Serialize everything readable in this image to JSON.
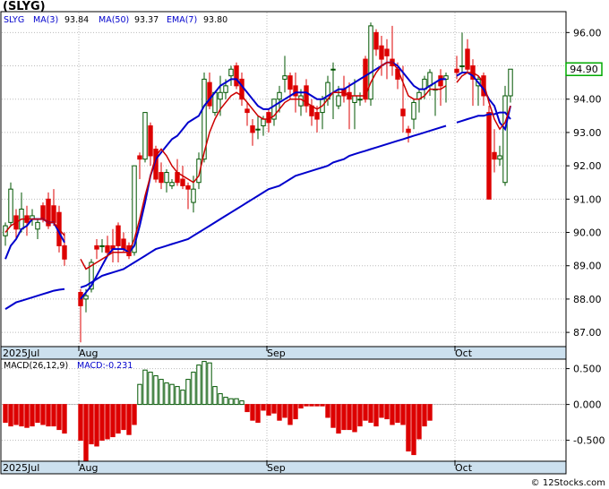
{
  "chart_data": [
    {
      "type": "candlestick",
      "title": "(SLYG)",
      "legend": {
        "symbol": "SLYG",
        "items": [
          {
            "label": "MA(3)",
            "value": "93.84",
            "color": "#0000cc"
          },
          {
            "label": "MA(50)",
            "value": "93.37",
            "color": "#0000cc"
          },
          {
            "label": "EMA(7)",
            "value": "93.80",
            "color": "#0000cc"
          }
        ]
      },
      "last_price_label": "94.90",
      "x_labels": [
        {
          "text": "2025Jul",
          "index": 0
        },
        {
          "text": "Aug",
          "index": 14
        },
        {
          "text": "Sep",
          "index": 49
        },
        {
          "text": "Oct",
          "index": 84
        }
      ],
      "ylim": [
        86.6,
        96.6
      ],
      "yticks": [
        "87.00",
        "88.00",
        "89.00",
        "90.00",
        "91.00",
        "92.00",
        "93.00",
        "94.00",
        "95.00",
        "96.00"
      ],
      "ohlc": [
        [
          89.9,
          90.3,
          89.6,
          90.2
        ],
        [
          90.3,
          91.5,
          90.2,
          91.3
        ],
        [
          90.5,
          90.7,
          89.8,
          90.1
        ],
        [
          90.1,
          91.2,
          90.0,
          90.7
        ],
        [
          90.5,
          90.8,
          89.9,
          90.3
        ],
        [
          90.4,
          90.7,
          90.2,
          90.5
        ],
        [
          90.1,
          90.4,
          89.8,
          90.3
        ],
        [
          90.8,
          90.9,
          90.3,
          90.4
        ],
        [
          91.0,
          91.2,
          90.1,
          90.2
        ],
        [
          90.8,
          91.3,
          90.2,
          90.3
        ],
        [
          90.6,
          90.8,
          89.4,
          89.6
        ],
        [
          89.6,
          90.0,
          89.0,
          89.2
        ],
        [
          null,
          null,
          null,
          null
        ],
        [
          null,
          null,
          null,
          null
        ],
        [
          88.2,
          88.3,
          86.7,
          87.8
        ],
        [
          88.0,
          88.3,
          87.6,
          88.1
        ],
        [
          88.3,
          89.2,
          88.2,
          89.1
        ],
        [
          89.6,
          89.8,
          89.2,
          89.5
        ],
        [
          89.6,
          89.8,
          89.4,
          89.6
        ],
        [
          89.6,
          89.9,
          89.3,
          89.4
        ],
        [
          89.6,
          90.1,
          89.1,
          89.5
        ],
        [
          90.2,
          90.3,
          89.1,
          89.6
        ],
        [
          89.8,
          90.0,
          89.4,
          89.5
        ],
        [
          89.6,
          89.7,
          89.2,
          89.3
        ],
        [
          89.4,
          92.0,
          89.3,
          92.0
        ],
        [
          92.3,
          92.4,
          91.6,
          92.2
        ],
        [
          92.2,
          93.6,
          92.1,
          93.6
        ],
        [
          93.2,
          93.3,
          92.0,
          92.3
        ],
        [
          92.5,
          92.6,
          91.5,
          91.6
        ],
        [
          91.8,
          92.1,
          91.3,
          91.5
        ],
        [
          91.5,
          91.9,
          91.2,
          91.8
        ],
        [
          91.4,
          91.6,
          91.3,
          91.5
        ],
        [
          91.8,
          92.2,
          91.4,
          91.5
        ],
        [
          91.6,
          92.0,
          91.3,
          91.4
        ],
        [
          91.4,
          91.5,
          90.7,
          91.3
        ],
        [
          90.9,
          91.7,
          90.6,
          91.3
        ],
        [
          91.5,
          92.4,
          91.3,
          92.2
        ],
        [
          92.2,
          94.8,
          92.1,
          94.6
        ],
        [
          94.5,
          94.8,
          93.7,
          93.8
        ],
        [
          93.6,
          94.2,
          93.5,
          94.2
        ],
        [
          94.0,
          94.7,
          93.5,
          94.2
        ],
        [
          94.2,
          94.6,
          94.0,
          94.4
        ],
        [
          94.7,
          95.0,
          94.4,
          94.9
        ],
        [
          95.0,
          95.1,
          94.3,
          94.4
        ],
        [
          94.6,
          94.8,
          93.8,
          94.0
        ],
        [
          93.7,
          93.9,
          93.2,
          93.6
        ],
        [
          93.2,
          93.4,
          92.6,
          93.0
        ],
        [
          93.1,
          93.5,
          92.8,
          93.1
        ],
        [
          93.2,
          93.5,
          92.9,
          93.4
        ],
        [
          93.6,
          93.7,
          93.0,
          93.3
        ],
        [
          93.4,
          94.0,
          93.2,
          94.0
        ],
        [
          94.0,
          94.4,
          93.6,
          94.2
        ],
        [
          94.6,
          95.3,
          94.2,
          94.7
        ],
        [
          94.7,
          94.8,
          94.0,
          94.3
        ],
        [
          94.4,
          94.8,
          93.6,
          94.1
        ],
        [
          93.8,
          94.3,
          93.5,
          94.1
        ],
        [
          94.4,
          94.6,
          93.6,
          93.8
        ],
        [
          93.8,
          94.0,
          93.2,
          93.5
        ],
        [
          93.6,
          93.8,
          93.0,
          93.4
        ],
        [
          93.6,
          94.1,
          93.1,
          94.0
        ],
        [
          94.0,
          94.7,
          93.8,
          94.5
        ],
        [
          94.9,
          95.1,
          93.4,
          94.9
        ],
        [
          93.8,
          94.4,
          93.7,
          94.1
        ],
        [
          94.3,
          94.7,
          93.9,
          94.1
        ],
        [
          94.2,
          94.5,
          93.1,
          94.0
        ],
        [
          93.9,
          94.6,
          93.1,
          94.1
        ],
        [
          94.0,
          94.2,
          93.8,
          94.0
        ],
        [
          95.2,
          95.3,
          93.9,
          94.0
        ],
        [
          94.0,
          96.3,
          93.8,
          96.2
        ],
        [
          96.0,
          96.1,
          95.3,
          95.5
        ],
        [
          95.6,
          95.9,
          94.7,
          95.2
        ],
        [
          95.5,
          95.8,
          94.6,
          95.3
        ],
        [
          95.2,
          96.2,
          94.7,
          95.0
        ],
        [
          94.9,
          95.1,
          94.3,
          94.6
        ],
        [
          93.7,
          95.0,
          93.0,
          93.5
        ],
        [
          93.1,
          93.2,
          92.7,
          93.0
        ],
        [
          93.4,
          94.0,
          93.1,
          93.9
        ],
        [
          94.0,
          94.3,
          93.6,
          94.2
        ],
        [
          94.3,
          94.7,
          94.0,
          94.6
        ],
        [
          94.4,
          94.9,
          94.1,
          94.8
        ],
        [
          94.3,
          94.5,
          93.5,
          94.3
        ],
        [
          94.7,
          94.9,
          93.8,
          94.4
        ],
        [
          94.6,
          94.8,
          93.9,
          94.7
        ],
        [
          null,
          null,
          null,
          null
        ],
        [
          94.9,
          95.3,
          94.6,
          94.8
        ],
        [
          95.0,
          96.0,
          94.8,
          95.0
        ],
        [
          95.5,
          95.8,
          94.8,
          94.9
        ],
        [
          95.0,
          95.2,
          93.8,
          94.6
        ],
        [
          94.4,
          94.7,
          93.8,
          94.6
        ],
        [
          94.7,
          94.8,
          93.8,
          94.1
        ],
        [
          93.6,
          93.8,
          91.4,
          91.0
        ],
        [
          92.4,
          93.1,
          91.8,
          92.2
        ],
        [
          92.2,
          92.6,
          92.0,
          92.3
        ],
        [
          91.5,
          94.4,
          91.4,
          94.1
        ],
        [
          94.1,
          94.8,
          93.9,
          94.9
        ]
      ],
      "series": [
        {
          "name": "MA(3)",
          "color": "#0000cc",
          "values": [
            89.2,
            89.6,
            89.8,
            90.1,
            90.2,
            90.4,
            90.4,
            90.4,
            90.3,
            90.3,
            90.0,
            89.7,
            null,
            null,
            88.0,
            88.2,
            88.4,
            88.7,
            89.0,
            89.3,
            89.5,
            89.5,
            89.5,
            89.4,
            89.6,
            90.2,
            90.9,
            91.7,
            92.2,
            92.4,
            92.6,
            92.8,
            92.9,
            93.1,
            93.3,
            93.4,
            93.5,
            93.8,
            94.0,
            94.2,
            94.4,
            94.5,
            94.6,
            94.6,
            94.4,
            94.2,
            94.0,
            93.8,
            93.7,
            93.7,
            93.8,
            93.9,
            94.0,
            94.1,
            94.2,
            94.2,
            94.2,
            94.1,
            94.0,
            94.0,
            94.1,
            94.2,
            94.3,
            94.3,
            94.4,
            94.5,
            94.6,
            94.7,
            94.8,
            94.9,
            95.0,
            95.1,
            95.1,
            95.0,
            94.8,
            94.6,
            94.4,
            94.3,
            94.3,
            94.4,
            94.5,
            94.6,
            94.6,
            null,
            94.7,
            94.8,
            94.8,
            94.7,
            94.5,
            94.3,
            94.0,
            93.8,
            93.3,
            93.1,
            93.8
          ]
        },
        {
          "name": "MA(50)",
          "color": "#0000cc",
          "values": [
            87.7,
            87.8,
            87.9,
            87.95,
            88.0,
            88.05,
            88.1,
            88.15,
            88.2,
            88.25,
            88.28,
            88.3,
            null,
            null,
            88.35,
            88.4,
            88.5,
            88.6,
            88.7,
            88.75,
            88.8,
            88.85,
            88.9,
            89.0,
            89.1,
            89.2,
            89.3,
            89.4,
            89.5,
            89.55,
            89.6,
            89.65,
            89.7,
            89.75,
            89.8,
            89.9,
            90.0,
            90.1,
            90.2,
            90.3,
            90.4,
            90.5,
            90.6,
            90.7,
            90.8,
            90.9,
            91.0,
            91.1,
            91.2,
            91.3,
            91.35,
            91.4,
            91.5,
            91.6,
            91.7,
            91.75,
            91.8,
            91.85,
            91.9,
            91.95,
            92.0,
            92.1,
            92.15,
            92.2,
            92.3,
            92.35,
            92.4,
            92.45,
            92.5,
            92.55,
            92.6,
            92.65,
            92.7,
            92.75,
            92.8,
            92.85,
            92.9,
            92.95,
            93.0,
            93.05,
            93.1,
            93.15,
            93.2,
            null,
            93.3,
            93.35,
            93.4,
            93.45,
            93.5,
            93.5,
            93.55,
            93.55,
            93.6,
            93.6,
            93.4
          ]
        },
        {
          "name": "EMA(7)",
          "color": "#cc0000",
          "values": [
            90.0,
            90.2,
            90.3,
            90.4,
            90.4,
            90.4,
            90.4,
            90.4,
            90.3,
            90.3,
            90.1,
            89.9,
            null,
            null,
            89.2,
            88.9,
            89.0,
            89.1,
            89.2,
            89.3,
            89.4,
            89.4,
            89.4,
            89.4,
            89.8,
            90.4,
            91.1,
            91.7,
            92.3,
            92.5,
            92.3,
            92.0,
            91.8,
            91.7,
            91.6,
            91.5,
            91.7,
            92.4,
            93.0,
            93.4,
            93.7,
            93.9,
            94.1,
            94.2,
            94.1,
            93.9,
            93.7,
            93.5,
            93.4,
            93.4,
            93.5,
            93.7,
            93.9,
            94.0,
            94.0,
            94.0,
            93.9,
            93.8,
            93.7,
            93.8,
            94.0,
            94.2,
            94.2,
            94.2,
            94.1,
            94.1,
            94.1,
            94.1,
            94.5,
            94.8,
            95.0,
            95.1,
            95.1,
            94.9,
            94.5,
            94.1,
            94.0,
            94.0,
            94.1,
            94.3,
            94.3,
            94.3,
            94.4,
            null,
            94.5,
            94.7,
            94.8,
            94.8,
            94.7,
            94.5,
            93.9,
            93.4,
            93.1,
            93.3,
            93.8
          ]
        }
      ]
    },
    {
      "type": "bar",
      "title": "MACD(26,12,9)",
      "label": "MACD:-0.231",
      "ylim": [
        -0.78,
        0.62
      ],
      "yticks": [
        "0.500",
        "0.000",
        "-0.500"
      ],
      "values": [
        -0.25,
        -0.3,
        -0.28,
        -0.3,
        -0.32,
        -0.3,
        -0.25,
        -0.28,
        -0.3,
        -0.3,
        -0.35,
        -0.4,
        null,
        null,
        -0.5,
        -0.78,
        -0.55,
        -0.58,
        -0.5,
        -0.48,
        -0.45,
        -0.4,
        -0.35,
        -0.42,
        -0.28,
        0.28,
        0.48,
        0.45,
        0.4,
        0.35,
        0.3,
        0.28,
        0.25,
        0.2,
        0.35,
        0.45,
        0.55,
        0.6,
        0.58,
        0.25,
        0.15,
        0.1,
        0.08,
        0.08,
        0.05,
        -0.1,
        -0.22,
        -0.25,
        -0.08,
        -0.15,
        -0.12,
        -0.22,
        -0.18,
        -0.28,
        -0.2,
        -0.05,
        -0.02,
        -0.02,
        -0.02,
        -0.02,
        -0.18,
        -0.32,
        -0.4,
        -0.35,
        -0.35,
        -0.38,
        -0.3,
        -0.22,
        -0.25,
        -0.3,
        -0.18,
        -0.2,
        -0.28,
        -0.25,
        -0.28,
        -0.65,
        -0.7,
        -0.48,
        -0.3,
        -0.22,
        null,
        null,
        null,
        null,
        null,
        null,
        null,
        null,
        null,
        null,
        null,
        null,
        null,
        null,
        null
      ]
    }
  ],
  "x_axis_band_labels": [
    "2025Jul",
    "Aug",
    "Sep",
    "Oct"
  ],
  "watermark": "© 12Stocks.com",
  "colors": {
    "up": "#005500",
    "down": "#dd0000",
    "band": "#cce0ee",
    "price_box": "#00aa00"
  }
}
